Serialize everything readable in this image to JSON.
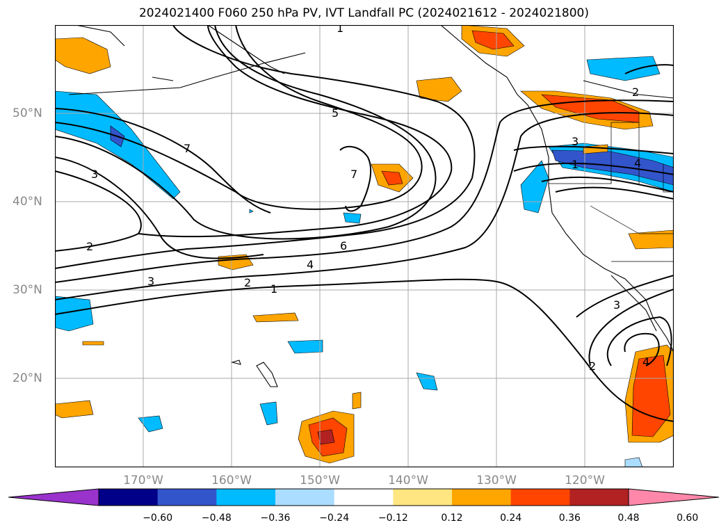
{
  "title": "2024021400 F060 250 hPa PV, IVT Landfall PC (2024021612 - 2024021800)",
  "lat_labels": [
    "50°N",
    "40°N",
    "30°N",
    "20°N"
  ],
  "lon_labels": [
    "170°W",
    "160°W",
    "150°W",
    "140°W",
    "130°W",
    "120°W"
  ],
  "colorbar": {
    "ticks": [
      "−0.60",
      "−0.48",
      "−0.36",
      "−0.24",
      "−0.12",
      "0.12",
      "0.24",
      "0.36",
      "0.48",
      "0.60"
    ],
    "colors": [
      "#9933cc",
      "#000088",
      "#3355cc",
      "#00bbff",
      "#aaddff",
      "#ffffff",
      "#ffe680",
      "#ffa500",
      "#ff4500",
      "#b22222",
      "#ff88aa"
    ]
  },
  "contour_labels": [
    "1",
    "2",
    "3",
    "4",
    "5",
    "6",
    "7"
  ]
}
